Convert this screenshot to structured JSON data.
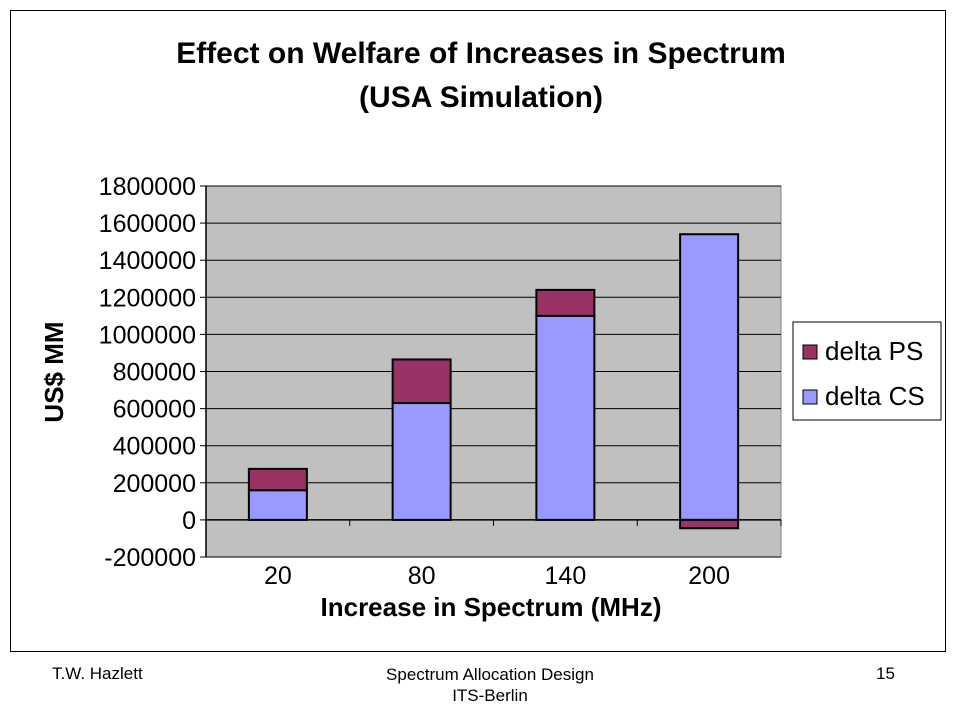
{
  "chart_data": {
    "type": "bar",
    "stacked": true,
    "title": "Effect on Welfare of Increases in Spectrum",
    "subtitle": "(USA Simulation)",
    "xlabel": "Increase in Spectrum (MHz)",
    "ylabel": "US$ MM",
    "categories": [
      "20",
      "80",
      "140",
      "200"
    ],
    "yticks": [
      "1800000",
      "1600000",
      "1400000",
      "1200000",
      "1000000",
      "800000",
      "600000",
      "400000",
      "200000",
      "0",
      "-200000"
    ],
    "ylim": [
      -200000,
      1800000
    ],
    "grid": true,
    "legend_position": "right",
    "series": [
      {
        "name": "delta CS",
        "color": "#9999ff",
        "values": [
          160000,
          630000,
          1100000,
          1540000
        ]
      },
      {
        "name": "delta PS",
        "color": "#993366",
        "values": [
          115000,
          235000,
          140000,
          -45000
        ]
      }
    ],
    "plot_background": "#c0c0c0",
    "legend": [
      "delta PS",
      "delta CS"
    ]
  },
  "footer": {
    "left": "T.W. Hazlett",
    "center_line1": "Spectrum Allocation Design",
    "center_line2": "ITS-Berlin",
    "page_number": "15"
  }
}
